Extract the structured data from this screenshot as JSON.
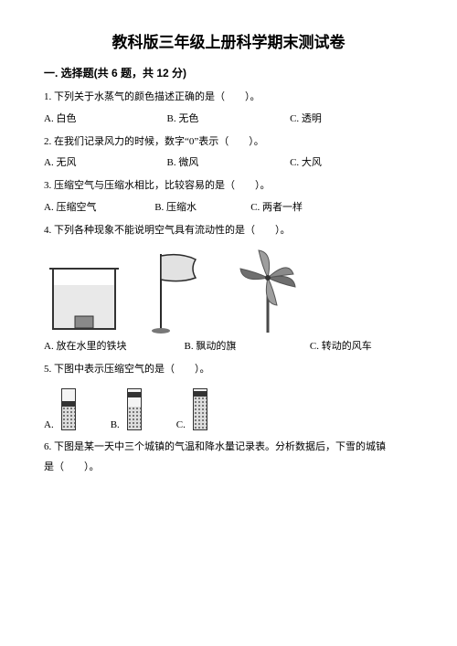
{
  "title": "教科版三年级上册科学期末测试卷",
  "section1": {
    "heading": "一. 选择题(共 6 题，共 12 分)",
    "q1": {
      "stem": "1. 下列关于水蒸气的颜色描述正确的是（　　）。",
      "a": "A. 白色",
      "b": "B. 无色",
      "c": "C. 透明"
    },
    "q2": {
      "stem": "2. 在我们记录风力的时候，数字“0”表示（　　）。",
      "a": "A. 无风",
      "b": "B. 微风",
      "c": "C. 大风"
    },
    "q3": {
      "stem": "3. 压缩空气与压缩水相比，比较容易的是（　　）。",
      "a": "A. 压缩空气",
      "b": "B. 压缩水",
      "c": "C. 两者一样"
    },
    "q4": {
      "stem": "4. 下列各种现象不能说明空气具有流动性的是（　　）。",
      "a": "A. 放在水里的铁块",
      "b": "B. 飘动的旗",
      "c": "C. 转动的风车",
      "box_stroke": "#333333",
      "box_fill": "#ffffff",
      "box_inner_fill": "#8a8a8a",
      "flag_stroke": "#2a2a2a",
      "flag_fill": "#e2e2e2",
      "pinwheel_fill": "#9e9e9e",
      "pinwheel_dark": "#6f6f6f",
      "pinwheel_stick": "#4a4a4a"
    },
    "q5": {
      "stem": "5. 下图中表示压缩空气的是（　　）。",
      "a": "A.",
      "b": "B.",
      "c": "C.",
      "tubeA_fill_pct": 55,
      "tubeA_piston_pct": 55,
      "tubeB_fill_pct": 55,
      "tubeB_piston_pct": 78,
      "tubeC_fill_pct": 80,
      "tubeC_piston_pct": 80
    },
    "q6": {
      "stem_p1": "6. 下图是某一天中三个城镇的气温和降水量记录表。分析数据后，下雪的城镇",
      "stem_p2": "是（　　）。"
    }
  }
}
